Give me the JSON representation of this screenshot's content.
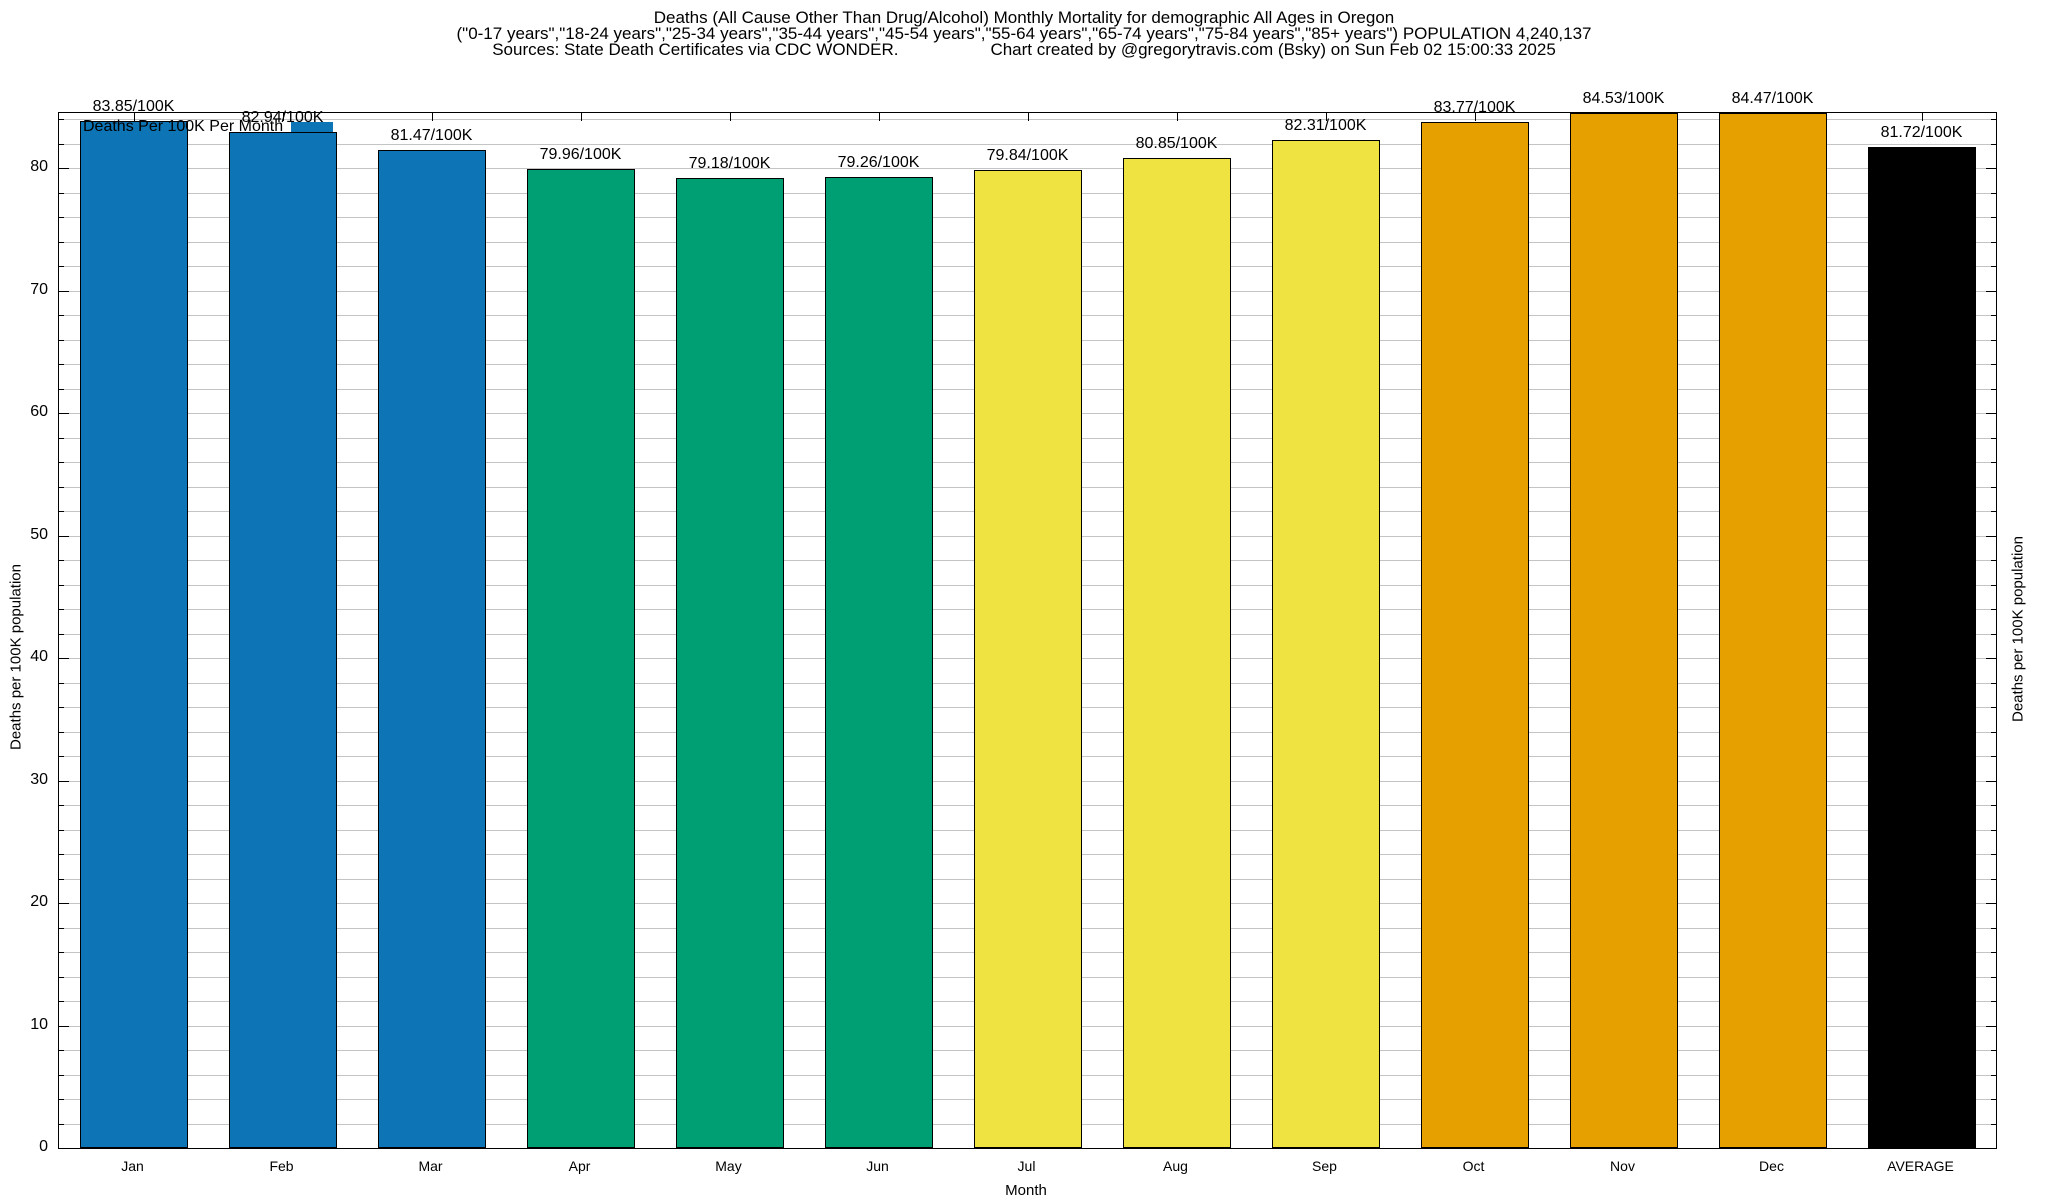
{
  "title": {
    "line1": "Deaths (All Cause Other Than Drug/Alcohol) Monthly Mortality for demographic All Ages in Oregon",
    "line2": "(\"0-17 years\",\"18-24 years\",\"25-34 years\",\"35-44 years\",\"45-54 years\",\"55-64 years\",\"65-74 years\",\"75-84 years\",\"85+ years\") POPULATION 4,240,137",
    "sources": "Sources: State Death Certificates via CDC WONDER.",
    "credit": "Chart created by @gregorytravis.com (Bsky) on Sun Feb 02 15:00:33 2025"
  },
  "legend": {
    "label": "Deaths Per 100K Per Month",
    "swatch_color": "#0d74b5"
  },
  "chart_data": {
    "type": "bar",
    "title": "Deaths (All Cause Other Than Drug/Alcohol) Monthly Mortality for demographic All Ages in Oregon",
    "categories": [
      "Jan",
      "Feb",
      "Mar",
      "Apr",
      "May",
      "Jun",
      "Jul",
      "Aug",
      "Sep",
      "Oct",
      "Nov",
      "Dec",
      "AVERAGE"
    ],
    "values": [
      83.85,
      82.94,
      81.47,
      79.96,
      79.18,
      79.26,
      79.84,
      80.85,
      82.31,
      83.77,
      84.53,
      84.47,
      81.72
    ],
    "bar_labels": [
      "83.85/100K",
      "82.94/100K",
      "81.47/100K",
      "79.96/100K",
      "79.18/100K",
      "79.26/100K",
      "79.84/100K",
      "80.85/100K",
      "82.31/100K",
      "83.77/100K",
      "84.53/100K",
      "84.47/100K",
      "81.72/100K"
    ],
    "bar_colors": [
      "#0d74b5",
      "#0d74b5",
      "#0d74b5",
      "#009e73",
      "#009e73",
      "#009e73",
      "#efe342",
      "#efe342",
      "#efe342",
      "#e6a000",
      "#e6a000",
      "#e6a000",
      "#000000"
    ],
    "xlabel": "Month",
    "ylabel_left": "Deaths per 100K population",
    "ylabel_right": "Deaths per 100K population",
    "ylim": [
      0,
      84.5
    ],
    "yticks": [
      0,
      10,
      20,
      30,
      40,
      50,
      60,
      70,
      80
    ],
    "ytick_interval": 10,
    "minor_grid_interval": 2,
    "grid": true,
    "legend_label": "Deaths Per 100K Per Month",
    "legend_position": "top-left"
  },
  "colors": {
    "blue": "#0d74b5",
    "green": "#009e73",
    "yellow": "#efe342",
    "orange": "#e6a000",
    "average_black": "#000000",
    "gridline": "#c4c4c4",
    "border": "#000000"
  }
}
